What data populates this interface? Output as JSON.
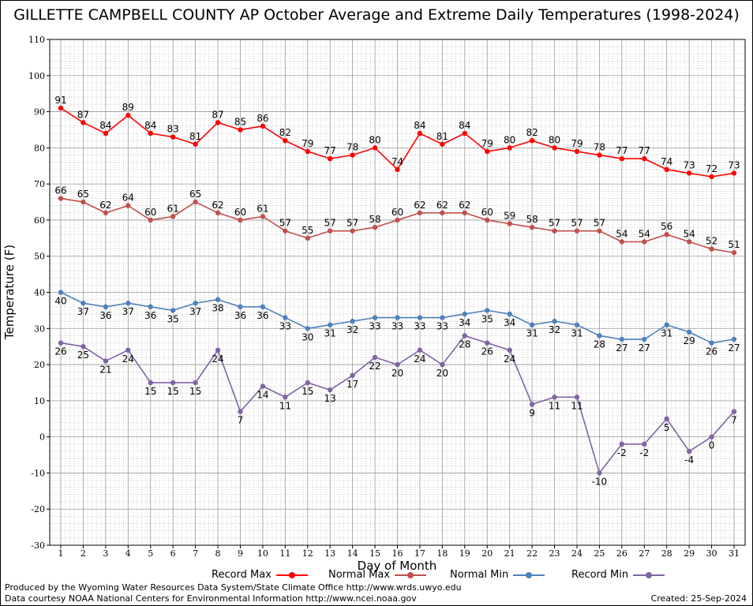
{
  "chart_data": {
    "type": "line",
    "title": "GILLETTE CAMPBELL COUNTY AP October Average and Extreme Daily Temperatures (1998-2024)",
    "xlabel": "Day of Month",
    "ylabel": "Temperature (F)",
    "ylim": [
      -30,
      110
    ],
    "xlim": [
      1,
      31
    ],
    "yticks": [
      -30,
      -20,
      -10,
      0,
      10,
      20,
      30,
      40,
      50,
      60,
      70,
      80,
      90,
      100,
      110
    ],
    "x": [
      1,
      2,
      3,
      4,
      5,
      6,
      7,
      8,
      9,
      10,
      11,
      12,
      13,
      14,
      15,
      16,
      17,
      18,
      19,
      20,
      21,
      22,
      23,
      24,
      25,
      26,
      27,
      28,
      29,
      30,
      31
    ],
    "grid": true,
    "legend_position": "bottom",
    "series": [
      {
        "name": "Record Max",
        "color": "#ff0000",
        "labels_above": true,
        "values": [
          91,
          87,
          84,
          89,
          84,
          83,
          81,
          87,
          85,
          86,
          82,
          79,
          77,
          78,
          80,
          74,
          84,
          81,
          84,
          79,
          80,
          82,
          80,
          79,
          78,
          77,
          77,
          74,
          73,
          72,
          73
        ]
      },
      {
        "name": "Normal Max",
        "color": "#c0504d",
        "labels_above": true,
        "values": [
          66,
          65,
          62,
          64,
          60,
          61,
          65,
          62,
          60,
          61,
          57,
          55,
          57,
          57,
          58,
          60,
          62,
          62,
          62,
          60,
          59,
          58,
          57,
          57,
          57,
          54,
          54,
          56,
          54,
          52,
          51
        ]
      },
      {
        "name": "Normal Min",
        "color": "#4f81bd",
        "labels_above": false,
        "values": [
          40,
          37,
          36,
          37,
          36,
          35,
          37,
          38,
          36,
          36,
          33,
          30,
          31,
          32,
          33,
          33,
          33,
          33,
          34,
          35,
          34,
          31,
          32,
          31,
          28,
          27,
          27,
          31,
          29,
          26,
          27
        ]
      },
      {
        "name": "Record Min",
        "color": "#8064a2",
        "labels_above": false,
        "values": [
          26,
          25,
          21,
          24,
          15,
          15,
          15,
          24,
          7,
          14,
          11,
          15,
          13,
          17,
          22,
          20,
          24,
          20,
          28,
          26,
          24,
          9,
          11,
          11,
          -10,
          -2,
          -2,
          5,
          -4,
          0,
          7
        ]
      }
    ]
  },
  "footer": {
    "produced_by": "Produced by the Wyoming Water Resources Data System/State Climate Office http://www.wrds.uwyo.edu",
    "data_courtesy": "Data courtesy NOAA National Centers for Environmental Information http://www.ncei.noaa.gov",
    "created": "Created:  25-Sep-2024"
  }
}
